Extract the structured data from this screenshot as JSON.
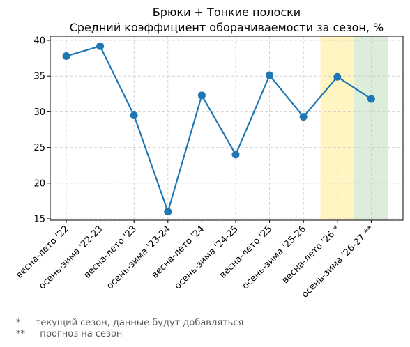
{
  "chart_data": {
    "type": "line",
    "title": "Брюки + Тонкие полоски",
    "subtitle": "Средний коэффициент оборачиваемости за сезон, %",
    "xlabel": "",
    "ylabel": "",
    "categories": [
      "весна-лето '22",
      "осень-зима '22-23",
      "весна-лето '23",
      "осень-зима '23-24",
      "весна-лето '24",
      "осень-зима '24-25",
      "весна-лето '25",
      "осень-зима '25-26",
      "весна-лето '26 *",
      "осень-зима '26-27 **"
    ],
    "series": [
      {
        "values": [
          37.8,
          39.2,
          29.5,
          16.0,
          32.3,
          24.0,
          35.1,
          29.3,
          34.9,
          31.8
        ]
      }
    ],
    "ylim": [
      15,
      40
    ],
    "yticks": [
      15,
      20,
      25,
      30,
      35,
      40
    ],
    "grid": true,
    "highlight_bands": [
      {
        "category": "весна-лето '26 *",
        "color": "#fff3b8"
      },
      {
        "category": "осень-зима '26-27 **",
        "color": "#d6ead2"
      }
    ],
    "colors": {
      "line": "#1f77b4",
      "grid": "#cccccc"
    }
  },
  "footnotes": [
    "* — текущий сезон, данные будут добавляться",
    "** — прогноз на сезон"
  ]
}
